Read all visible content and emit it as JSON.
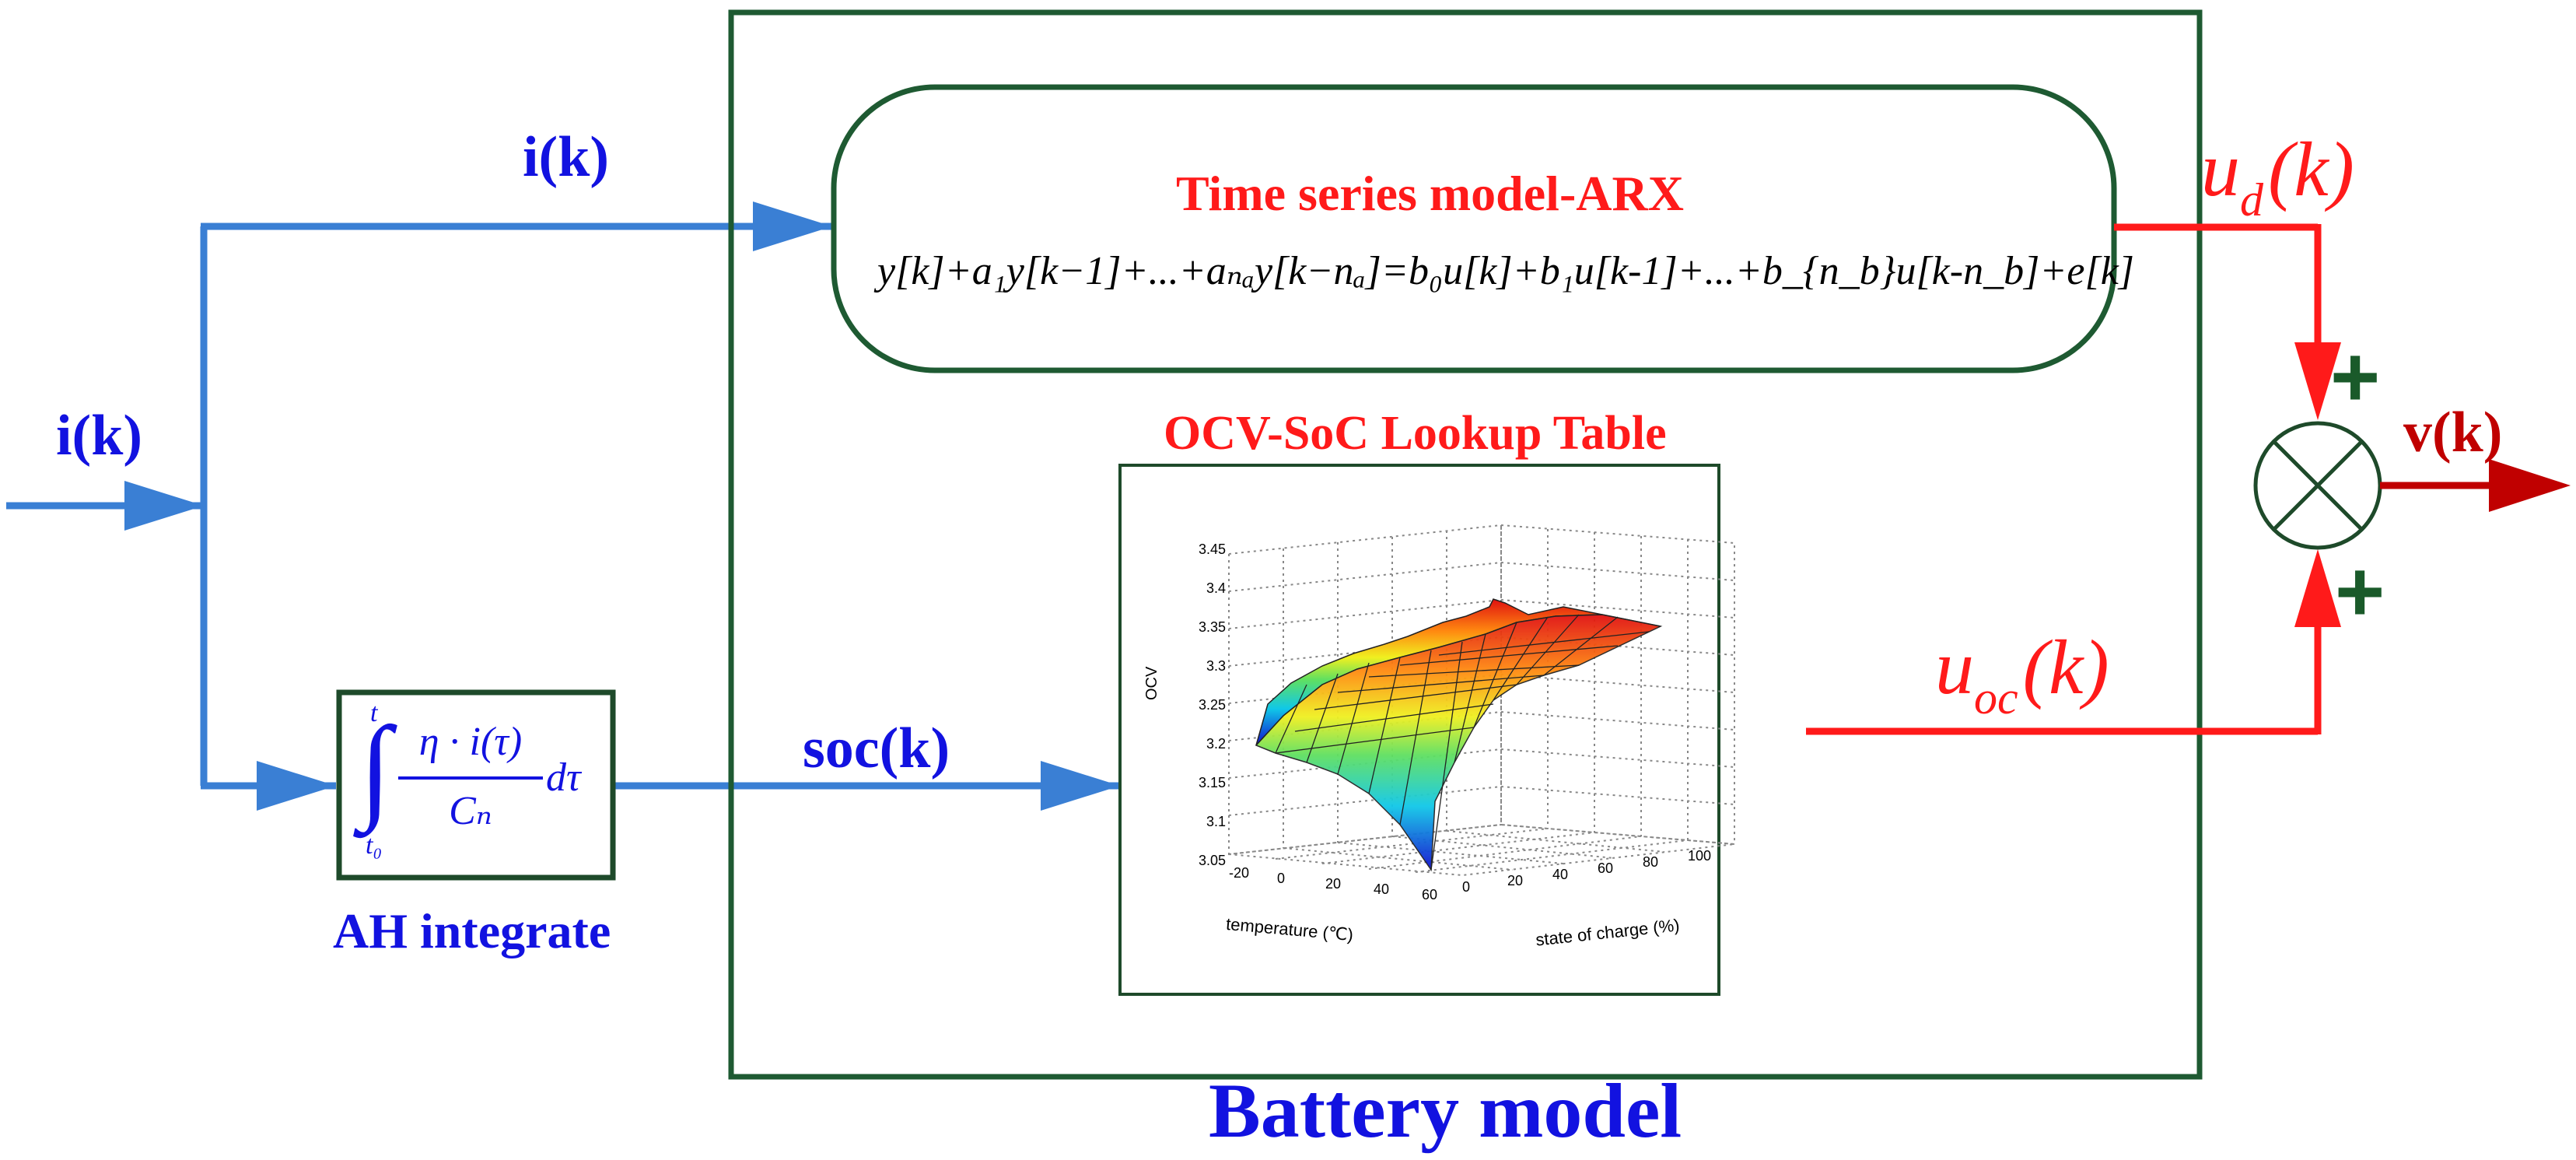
{
  "colors": {
    "blue": "#3a7fd4",
    "blue_text": "#1212e0",
    "red": "#ff1a1a",
    "dark_red": "#c00000",
    "green": "#1e5a32",
    "plus_green": "#1a5a2a"
  },
  "labels": {
    "input_current": "i(k)",
    "branch_current": "i(k)",
    "soc": "soc(k)",
    "ah_integrate": "AH integrate",
    "battery_model": "Battery model",
    "arx_title": "Time series model-ARX",
    "lookup_title": "OCV-SoC Lookup Table",
    "ud_u": "u",
    "ud_sub": "d",
    "ud_k": "(k)",
    "uoc_u": "u",
    "uoc_sub": "oc",
    "uoc_k": "(k)",
    "output_voltage": "v(k)",
    "plus_top": "+",
    "plus_bottom": "+"
  },
  "equations": {
    "arx": "y[k]+a₁y[k−1]+...+aₙₐy[k−nₐ]=b₀u[k]+b₁u[k-1]+...+b_{n_b}u[k-n_b]+e[k]",
    "ah_numerator": "η · i(τ)",
    "ah_denominator": "Cₙ",
    "ah_dtau": "dτ",
    "ah_upper": "t",
    "ah_lower": "t₀"
  },
  "surface_plot": {
    "zlabel": "OCV",
    "xlabel": "temperature (℃)",
    "ylabel": "state of charge (%)",
    "z_ticks": [
      "3.05",
      "3.1",
      "3.15",
      "3.2",
      "3.25",
      "3.3",
      "3.35",
      "3.4",
      "3.45"
    ],
    "x_ticks": [
      "-20",
      "0",
      "20",
      "40",
      "60"
    ],
    "y_ticks": [
      "0",
      "20",
      "40",
      "60",
      "80",
      "100"
    ]
  }
}
